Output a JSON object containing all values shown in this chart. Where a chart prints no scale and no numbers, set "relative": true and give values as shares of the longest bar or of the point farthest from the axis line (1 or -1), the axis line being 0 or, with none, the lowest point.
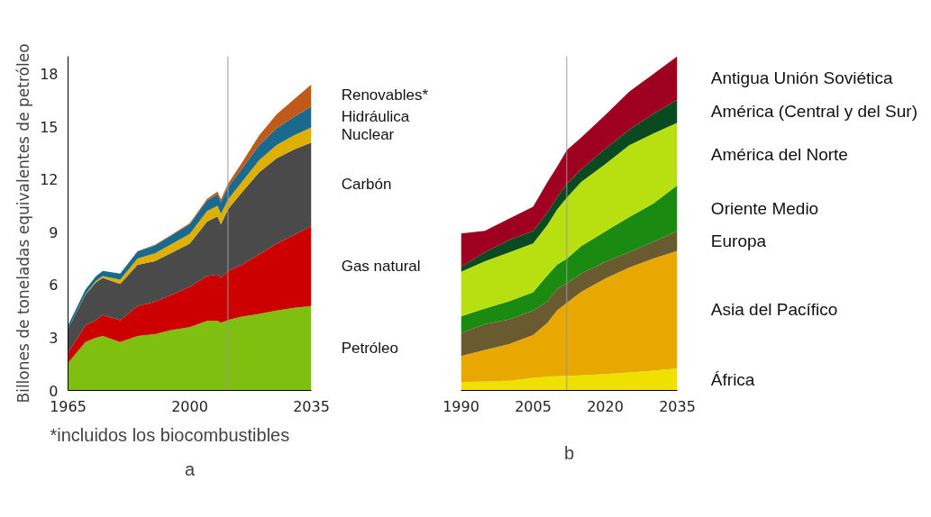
{
  "chart_data": [
    {
      "type": "area",
      "stacked": true,
      "ylabel": "Billones de toneladas equivalentes de petróleo",
      "x": [
        1965,
        1970,
        1973,
        1975,
        1980,
        1985,
        1990,
        1995,
        2000,
        2005,
        2008,
        2009,
        2011,
        2015,
        2020,
        2025,
        2030,
        2035
      ],
      "series": [
        {
          "name": "Petróleo",
          "color": "#7fbf10",
          "values": [
            1.56,
            2.75,
            3.0,
            3.1,
            2.75,
            3.1,
            3.2,
            3.45,
            3.6,
            3.95,
            3.95,
            3.85,
            4.0,
            4.2,
            4.35,
            4.55,
            4.7,
            4.8
          ]
        },
        {
          "name": "Gas natural",
          "color": "#cc0000",
          "values": [
            0.59,
            0.95,
            1.0,
            1.2,
            1.25,
            1.7,
            1.85,
            2.0,
            2.3,
            2.55,
            2.65,
            2.55,
            2.8,
            2.95,
            3.4,
            3.8,
            4.15,
            4.55
          ]
        },
        {
          "name": "Carbón",
          "color": "#4a4a4a",
          "values": [
            1.35,
            1.75,
            2.15,
            2.1,
            2.05,
            2.35,
            2.3,
            2.4,
            2.45,
            3.1,
            3.3,
            3.05,
            3.5,
            4.1,
            4.65,
            4.85,
            4.85,
            4.75
          ]
        },
        {
          "name": "Nuclear",
          "color": "#e0b000",
          "values": [
            0.0,
            0.03,
            0.07,
            0.1,
            0.25,
            0.35,
            0.45,
            0.5,
            0.55,
            0.6,
            0.6,
            0.6,
            0.55,
            0.6,
            0.7,
            0.75,
            0.8,
            0.85
          ]
        },
        {
          "name": "Hidráulica",
          "color": "#1a6a90",
          "values": [
            0.2,
            0.25,
            0.27,
            0.3,
            0.35,
            0.4,
            0.45,
            0.5,
            0.55,
            0.6,
            0.65,
            0.65,
            0.7,
            0.75,
            0.85,
            0.95,
            1.05,
            1.2
          ]
        },
        {
          "name": "Renovables*",
          "color": "#c05a1a",
          "values": [
            0.0,
            0.0,
            0.0,
            0.0,
            0.0,
            0.02,
            0.03,
            0.04,
            0.06,
            0.1,
            0.15,
            0.17,
            0.2,
            0.35,
            0.55,
            0.8,
            1.0,
            1.25
          ]
        }
      ],
      "xlim": [
        1965,
        2035
      ],
      "xticks": [
        1965,
        2000,
        2035
      ],
      "ylim": [
        0,
        19
      ],
      "yticks": [
        0,
        3,
        6,
        9,
        12,
        15,
        18
      ],
      "ref_lines": [
        {
          "axis": "x",
          "value": 2011,
          "color": "#999999"
        }
      ],
      "annotations": [
        "*incluidos los biocombustibles",
        "a"
      ]
    },
    {
      "type": "area",
      "stacked": true,
      "relative": true,
      "x": [
        1990,
        1995,
        2000,
        2005,
        2008,
        2010,
        2012,
        2015,
        2020,
        2025,
        2030,
        2035
      ],
      "series": [
        {
          "name": "África",
          "color": "#f0e000",
          "values": [
            0.025,
            0.027,
            0.029,
            0.038,
            0.041,
            0.043,
            0.044,
            0.045,
            0.049,
            0.054,
            0.059,
            0.066
          ]
        },
        {
          "name": "Asia del Pacífico",
          "color": "#e8a800",
          "values": [
            0.078,
            0.094,
            0.11,
            0.128,
            0.162,
            0.197,
            0.218,
            0.25,
            0.286,
            0.314,
            0.336,
            0.352
          ]
        },
        {
          "name": "Europa",
          "color": "#6a5a30",
          "values": [
            0.069,
            0.078,
            0.073,
            0.073,
            0.064,
            0.064,
            0.059,
            0.055,
            0.05,
            0.046,
            0.05,
            0.059
          ]
        },
        {
          "name": "Oriente Medio",
          "color": "#1a8a10",
          "values": [
            0.05,
            0.046,
            0.055,
            0.055,
            0.078,
            0.073,
            0.073,
            0.082,
            0.091,
            0.105,
            0.114,
            0.137
          ]
        },
        {
          "name": "América del Norte",
          "color": "#b8e010",
          "values": [
            0.133,
            0.142,
            0.146,
            0.146,
            0.151,
            0.165,
            0.183,
            0.192,
            0.201,
            0.215,
            0.21,
            0.187
          ]
        },
        {
          "name": "América  (Central y  del Sur)",
          "color": "#0a4a20",
          "values": [
            0.014,
            0.027,
            0.037,
            0.037,
            0.037,
            0.037,
            0.041,
            0.037,
            0.046,
            0.046,
            0.059,
            0.069
          ]
        },
        {
          "name": "Antigua Unión Soviética",
          "color": "#a00020",
          "values": [
            0.101,
            0.064,
            0.064,
            0.073,
            0.091,
            0.091,
            0.101,
            0.096,
            0.101,
            0.114,
            0.119,
            0.13
          ]
        }
      ],
      "xlim": [
        1990,
        2035
      ],
      "xticks": [
        1990,
        2005,
        2020,
        2035
      ],
      "ref_lines": [
        {
          "axis": "x",
          "value": 2012,
          "color": "#999999"
        }
      ],
      "annotations": [
        "b"
      ]
    }
  ]
}
